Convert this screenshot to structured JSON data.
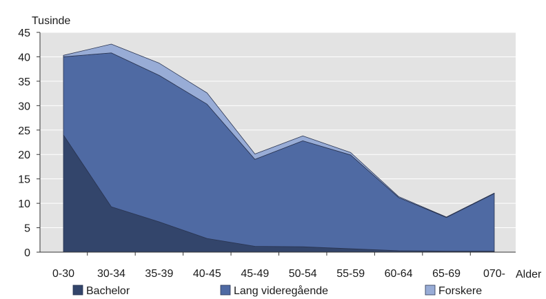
{
  "chart_data": {
    "type": "area",
    "stacked": true,
    "ylabel": "Tusinde",
    "xlabel": "Alder",
    "ylim": [
      0,
      45
    ],
    "yticks": [
      0,
      5,
      10,
      15,
      20,
      25,
      30,
      35,
      40,
      45
    ],
    "categories": [
      "0-30",
      "30-34",
      "35-39",
      "40-45",
      "45-49",
      "50-54",
      "55-59",
      "60-64",
      "65-69",
      "070-"
    ],
    "series": [
      {
        "name": "Bachelor",
        "color": "#33456b",
        "values": [
          24.0,
          9.3,
          6.2,
          2.8,
          1.2,
          1.1,
          0.7,
          0.3,
          0.2,
          0.2
        ]
      },
      {
        "name": "Lang videregående",
        "color": "#4f6aa3",
        "values": [
          16.0,
          31.5,
          30.0,
          27.5,
          17.8,
          21.7,
          19.2,
          10.9,
          6.9,
          11.8
        ]
      },
      {
        "name": "Forskere",
        "color": "#98acd6",
        "values": [
          0.3,
          1.8,
          2.5,
          2.3,
          1.1,
          1.0,
          0.5,
          0.2,
          0.1,
          0.1
        ]
      }
    ],
    "grid": true,
    "legend_position": "bottom",
    "plot_background": "#e3e3e3"
  }
}
